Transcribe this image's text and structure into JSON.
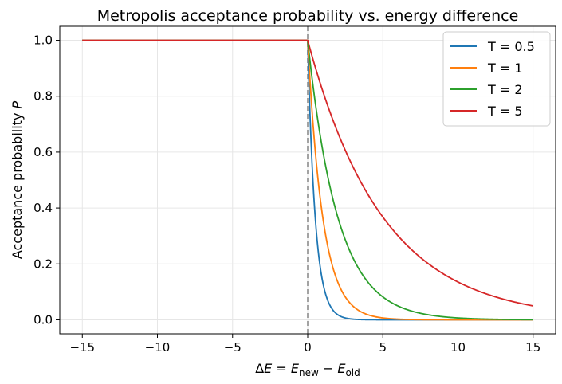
{
  "chart_data": {
    "type": "line",
    "title": "Metropolis acceptance probability vs. energy difference",
    "xlabel": {
      "prefix": "Δ",
      "var": "E",
      "eq": " = ",
      "e1": "E",
      "sub1": "new",
      "minus": " − ",
      "e2": "E",
      "sub2": "old"
    },
    "ylabel": {
      "text": "Acceptance probability ",
      "var": "P"
    },
    "xlim": [
      -16.5,
      16.5
    ],
    "ylim": [
      -0.05,
      1.05
    ],
    "xticks": [
      -15,
      -10,
      -5,
      0,
      5,
      10,
      15
    ],
    "xtick_labels": [
      "−15",
      "−10",
      "−5",
      "0",
      "5",
      "10",
      "15"
    ],
    "yticks": [
      0.0,
      0.2,
      0.4,
      0.6,
      0.8,
      1.0
    ],
    "ytick_labels": [
      "0.0",
      "0.2",
      "0.4",
      "0.6",
      "0.8",
      "1.0"
    ],
    "grid": true,
    "legend_position": "top-right",
    "x_range": [
      -15,
      15
    ],
    "formula": "P = min(1, exp(-dE/T))",
    "reference_line": {
      "x": 0,
      "style": "dashed",
      "color": "#999999"
    },
    "series": [
      {
        "name": "T = 0.5",
        "temperature": 0.5,
        "color": "#1f77b4"
      },
      {
        "name": "T = 1",
        "temperature": 1,
        "color": "#ff7f0e"
      },
      {
        "name": "T = 2",
        "temperature": 2,
        "color": "#2ca02c"
      },
      {
        "name": "T = 5",
        "temperature": 5,
        "color": "#d62728"
      }
    ]
  }
}
